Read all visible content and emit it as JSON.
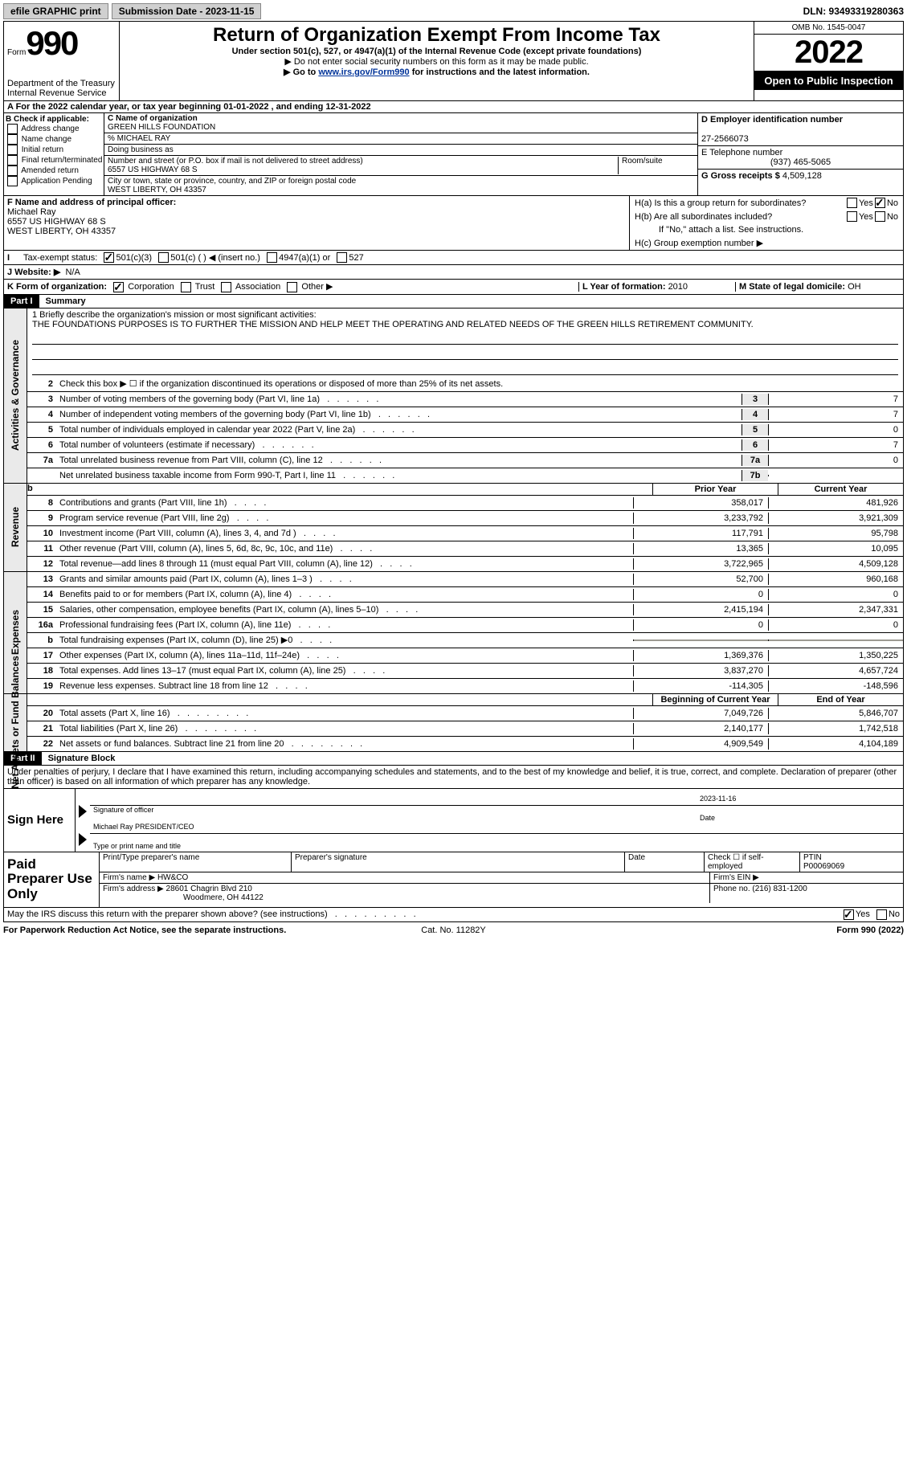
{
  "topbar": {
    "efile_label": "efile GRAPHIC print",
    "submission_label": "Submission Date - 2023-11-15",
    "dln": "DLN: 93493319280363"
  },
  "header": {
    "form_label": "Form",
    "form_num": "990",
    "dept": "Department of the Treasury\nInternal Revenue Service",
    "title": "Return of Organization Exempt From Income Tax",
    "under": "Under section 501(c), 527, or 4947(a)(1) of the Internal Revenue Code (except private foundations)",
    "ssn_note": "▶ Do not enter social security numbers on this form as it may be made public.",
    "goto_pre": "▶ Go to ",
    "goto_link": "www.irs.gov/Form990",
    "goto_post": " for instructions and the latest information.",
    "omb": "OMB No. 1545-0047",
    "year": "2022",
    "open": "Open to Public Inspection"
  },
  "lineA": "A For the 2022 calendar year, or tax year beginning 01-01-2022    , and ending 12-31-2022",
  "colB": {
    "title": "B Check if applicable:",
    "items": [
      "Address change",
      "Name change",
      "Initial return",
      "Final return/terminated",
      "Amended return",
      "Application Pending"
    ]
  },
  "colC": {
    "name_label": "C Name of organization",
    "name": "GREEN HILLS FOUNDATION",
    "care": "% MICHAEL RAY",
    "dba_label": "Doing business as",
    "addr_label": "Number and street (or P.O. box if mail is not delivered to street address)",
    "room_label": "Room/suite",
    "addr": "6557 US HIGHWAY 68 S",
    "city_label": "City or town, state or province, country, and ZIP or foreign postal code",
    "city": "WEST LIBERTY, OH  43357"
  },
  "colDE": {
    "d_label": "D Employer identification number",
    "ein": "27-2566073",
    "e_label": "E Telephone number",
    "phone": "(937) 465-5065",
    "g_label": "G Gross receipts $",
    "gross": "4,509,128"
  },
  "midF": {
    "label": "F Name and address of principal officer:",
    "name": "Michael Ray",
    "addr1": "6557 US HIGHWAY 68 S",
    "addr2": "WEST LIBERTY, OH  43357"
  },
  "midH": {
    "ha": "H(a)  Is this a group return for subordinates?",
    "hb": "H(b)  Are all subordinates included?",
    "hb_note": "If \"No,\" attach a list. See instructions.",
    "hc": "H(c)  Group exemption number ▶",
    "ha_no_checked": true
  },
  "taxExempt": {
    "label": "Tax-exempt status:",
    "o1": "501(c)(3)",
    "o2": "501(c) (  ) ◀ (insert no.)",
    "o3": "4947(a)(1) or",
    "o4": "527"
  },
  "lineJ": {
    "label": "J   Website: ▶",
    "val": "N/A"
  },
  "lineK": {
    "label": "K Form of organization:",
    "o1": "Corporation",
    "o2": "Trust",
    "o3": "Association",
    "o4": "Other ▶",
    "l_label": "L Year of formation: ",
    "l_val": "2010",
    "m_label": "M State of legal domicile: ",
    "m_val": "OH"
  },
  "partI": {
    "header": "Part I",
    "title": "Summary",
    "m1_label": "1   Briefly describe the organization's mission or most significant activities:",
    "mission": "THE FOUNDATIONS PURPOSES IS TO FURTHER THE MISSION AND HELP MEET THE OPERATING AND RELATED NEEDS OF THE GREEN HILLS RETIREMENT COMMUNITY.",
    "lines": [
      {
        "n": "2",
        "d": "Check this box ▶ ☐ if the organization discontinued its operations or disposed of more than 25% of its net assets."
      },
      {
        "n": "3",
        "d": "Number of voting members of the governing body (Part VI, line 1a)",
        "b": "3",
        "v": "7"
      },
      {
        "n": "4",
        "d": "Number of independent voting members of the governing body (Part VI, line 1b)",
        "b": "4",
        "v": "7"
      },
      {
        "n": "5",
        "d": "Total number of individuals employed in calendar year 2022 (Part V, line 2a)",
        "b": "5",
        "v": "0"
      },
      {
        "n": "6",
        "d": "Total number of volunteers (estimate if necessary)",
        "b": "6",
        "v": "7"
      },
      {
        "n": "7a",
        "d": "Total unrelated business revenue from Part VIII, column (C), line 12",
        "b": "7a",
        "v": "0"
      },
      {
        "n": "",
        "d": "Net unrelated business taxable income from Form 990-T, Part I, line 11",
        "b": "7b",
        "v": ""
      }
    ]
  },
  "revenue": {
    "h_prior": "Prior Year",
    "h_curr": "Current Year",
    "rows": [
      {
        "n": "8",
        "d": "Contributions and grants (Part VIII, line 1h)",
        "p": "358,017",
        "c": "481,926"
      },
      {
        "n": "9",
        "d": "Program service revenue (Part VIII, line 2g)",
        "p": "3,233,792",
        "c": "3,921,309"
      },
      {
        "n": "10",
        "d": "Investment income (Part VIII, column (A), lines 3, 4, and 7d )",
        "p": "117,791",
        "c": "95,798"
      },
      {
        "n": "11",
        "d": "Other revenue (Part VIII, column (A), lines 5, 6d, 8c, 9c, 10c, and 11e)",
        "p": "13,365",
        "c": "10,095"
      },
      {
        "n": "12",
        "d": "Total revenue—add lines 8 through 11 (must equal Part VIII, column (A), line 12)",
        "p": "3,722,965",
        "c": "4,509,128"
      }
    ]
  },
  "expenses": {
    "rows": [
      {
        "n": "13",
        "d": "Grants and similar amounts paid (Part IX, column (A), lines 1–3 )",
        "p": "52,700",
        "c": "960,168"
      },
      {
        "n": "14",
        "d": "Benefits paid to or for members (Part IX, column (A), line 4)",
        "p": "0",
        "c": "0"
      },
      {
        "n": "15",
        "d": "Salaries, other compensation, employee benefits (Part IX, column (A), lines 5–10)",
        "p": "2,415,194",
        "c": "2,347,331"
      },
      {
        "n": "16a",
        "d": "Professional fundraising fees (Part IX, column (A), line 11e)",
        "p": "0",
        "c": "0"
      },
      {
        "n": "b",
        "d": "Total fundraising expenses (Part IX, column (D), line 25) ▶0",
        "p": "",
        "c": "",
        "shade": true
      },
      {
        "n": "17",
        "d": "Other expenses (Part IX, column (A), lines 11a–11d, 11f–24e)",
        "p": "1,369,376",
        "c": "1,350,225"
      },
      {
        "n": "18",
        "d": "Total expenses. Add lines 13–17 (must equal Part IX, column (A), line 25)",
        "p": "3,837,270",
        "c": "4,657,724"
      },
      {
        "n": "19",
        "d": "Revenue less expenses. Subtract line 18 from line 12",
        "p": "-114,305",
        "c": "-148,596"
      }
    ]
  },
  "netassets": {
    "h_prior": "Beginning of Current Year",
    "h_curr": "End of Year",
    "rows": [
      {
        "n": "20",
        "d": "Total assets (Part X, line 16)",
        "p": "7,049,726",
        "c": "5,846,707"
      },
      {
        "n": "21",
        "d": "Total liabilities (Part X, line 26)",
        "p": "2,140,177",
        "c": "1,742,518"
      },
      {
        "n": "22",
        "d": "Net assets or fund balances. Subtract line 21 from line 20",
        "p": "4,909,549",
        "c": "4,104,189"
      }
    ]
  },
  "partII": {
    "header": "Part II",
    "title": "Signature Block",
    "decl": "Under penalties of perjury, I declare that I have examined this return, including accompanying schedules and statements, and to the best of my knowledge and belief, it is true, correct, and complete. Declaration of preparer (other than officer) is based on all information of which preparer has any knowledge."
  },
  "sign": {
    "label": "Sign Here",
    "sig_label": "Signature of officer",
    "date": "2023-11-16",
    "date_label": "Date",
    "name": "Michael Ray  PRESIDENT/CEO",
    "name_label": "Type or print name and title"
  },
  "preparer": {
    "label": "Paid Preparer Use Only",
    "h1": "Print/Type preparer's name",
    "h2": "Preparer's signature",
    "h3": "Date",
    "h4_pre": "Check ☐ if self-employed",
    "h5": "PTIN",
    "ptin": "P00069069",
    "firm_label": "Firm's name    ▶",
    "firm": "HW&CO",
    "ein_label": "Firm's EIN ▶",
    "addr_label": "Firm's address ▶",
    "addr1": "28601 Chagrin Blvd 210",
    "addr2": "Woodmere, OH  44122",
    "phone_label": "Phone no.",
    "phone": "(216) 831-1200"
  },
  "discuss": {
    "q": "May the IRS discuss this return with the preparer shown above? (see instructions)",
    "yes_checked": true
  },
  "footer": {
    "l": "For Paperwork Reduction Act Notice, see the separate instructions.",
    "c": "Cat. No. 11282Y",
    "r": "Form 990 (2022)"
  },
  "side_labels": {
    "ag": "Activities & Governance",
    "rev": "Revenue",
    "exp": "Expenses",
    "net": "Net Assets or Fund Balances"
  }
}
